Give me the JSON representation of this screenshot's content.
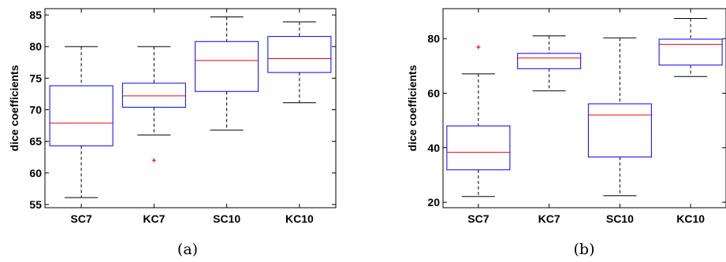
{
  "chart_data": [
    {
      "type": "box",
      "caption": "(a)",
      "ylabel": "dice coefficients",
      "categories": [
        "SC7",
        "KC7",
        "SC10",
        "KC10"
      ],
      "ylim": [
        54.5,
        86
      ],
      "yticks": [
        55,
        60,
        65,
        70,
        75,
        80,
        85
      ],
      "boxes": [
        {
          "category": "SC7",
          "whisker_low": 56.1,
          "q1": 64.3,
          "median": 67.9,
          "q3": 73.8,
          "whisker_high": 80.0,
          "outliers": []
        },
        {
          "category": "KC7",
          "whisker_low": 66.0,
          "q1": 70.4,
          "median": 72.2,
          "q3": 74.2,
          "whisker_high": 80.0,
          "outliers": [
            62.0
          ]
        },
        {
          "category": "SC10",
          "whisker_low": 66.8,
          "q1": 72.9,
          "median": 77.8,
          "q3": 80.8,
          "whisker_high": 84.7,
          "outliers": []
        },
        {
          "category": "KC10",
          "whisker_low": 71.1,
          "q1": 75.9,
          "median": 78.1,
          "q3": 81.6,
          "whisker_high": 83.9,
          "outliers": []
        }
      ],
      "colors": {
        "box": "#0000ff",
        "median": "#ff0000",
        "whisker": "#000000",
        "outlier": "#ff0000"
      }
    },
    {
      "type": "box",
      "caption": "(b)",
      "ylabel": "dice coefficients",
      "categories": [
        "SC7",
        "KC7",
        "SC10",
        "KC10"
      ],
      "ylim": [
        18,
        91
      ],
      "yticks": [
        20,
        40,
        60,
        80
      ],
      "boxes": [
        {
          "category": "SC7",
          "whisker_low": 22.1,
          "q1": 31.9,
          "median": 38.3,
          "q3": 48.0,
          "whisker_high": 67.1,
          "outliers": [
            76.9
          ]
        },
        {
          "category": "KC7",
          "whisker_low": 60.9,
          "q1": 69.0,
          "median": 72.9,
          "q3": 74.6,
          "whisker_high": 81.0,
          "outliers": []
        },
        {
          "category": "SC10",
          "whisker_low": 22.4,
          "q1": 36.6,
          "median": 52.0,
          "q3": 56.1,
          "whisker_high": 80.3,
          "outliers": []
        },
        {
          "category": "KC10",
          "whisker_low": 66.1,
          "q1": 70.3,
          "median": 77.9,
          "q3": 79.8,
          "whisker_high": 87.4,
          "outliers": []
        }
      ],
      "colors": {
        "box": "#0000ff",
        "median": "#ff0000",
        "whisker": "#000000",
        "outlier": "#ff0000"
      }
    }
  ]
}
